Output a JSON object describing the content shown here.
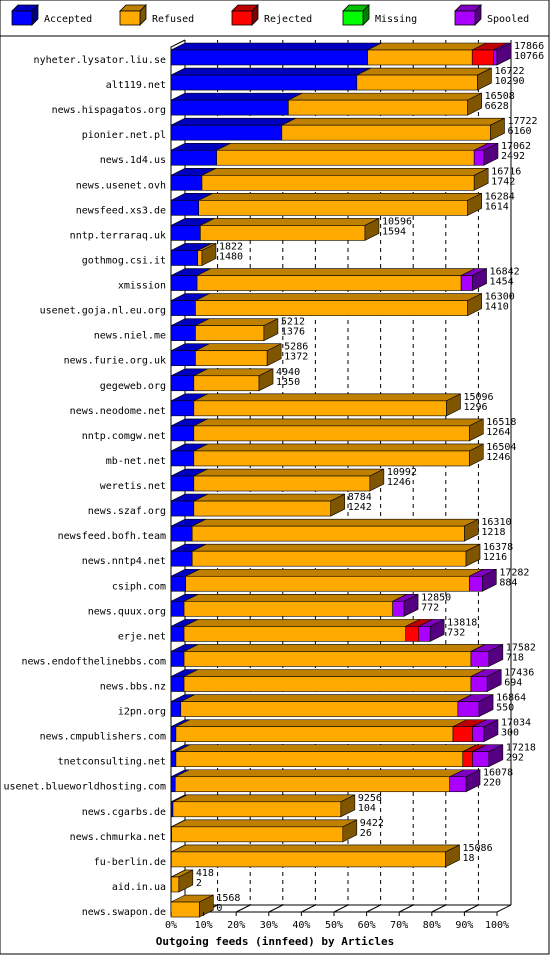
{
  "chart_data": {
    "type": "bar",
    "orientation": "horizontal",
    "stacked": true,
    "style": "3d",
    "title": "",
    "xlabel": "Outgoing feeds (innfeed) by Articles",
    "ylabel": "",
    "xlim": [
      0,
      100
    ],
    "x_ticks": [
      "0%",
      "10%",
      "20%",
      "30%",
      "40%",
      "50%",
      "60%",
      "70%",
      "80%",
      "90%",
      "100%"
    ],
    "grid": true,
    "legend_position": "top",
    "series": [
      {
        "name": "Accepted",
        "color": "#0000ff"
      },
      {
        "name": "Refused",
        "color": "#ffaa00"
      },
      {
        "name": "Rejected",
        "color": "#ff0000"
      },
      {
        "name": "Missing",
        "color": "#00ff00"
      },
      {
        "name": "Spooled",
        "color": "#aa00ff"
      }
    ],
    "rows": [
      {
        "name": "nyheter.lysator.liu.se",
        "offered": "17866",
        "accepted": "10766",
        "pct": [
          60.3,
          32.1,
          6.5,
          0,
          1.1
        ]
      },
      {
        "name": "alt119.net",
        "offered": "16722",
        "accepted": "10290",
        "pct": [
          57.0,
          37.0,
          0,
          0,
          0
        ]
      },
      {
        "name": "news.hispagatos.org",
        "offered": "16508",
        "accepted": "6628",
        "pct": [
          36.0,
          55.0,
          0,
          0,
          0
        ]
      },
      {
        "name": "pionier.net.pl",
        "offered": "17722",
        "accepted": "6160",
        "pct": [
          34.0,
          64.0,
          0,
          0,
          0
        ]
      },
      {
        "name": "news.1d4.us",
        "offered": "17062",
        "accepted": "2492",
        "pct": [
          14.0,
          79.0,
          0,
          0,
          3.0
        ]
      },
      {
        "name": "news.usenet.ovh",
        "offered": "16716",
        "accepted": "1742",
        "pct": [
          9.5,
          83.5,
          0,
          0,
          0
        ]
      },
      {
        "name": "newsfeed.xs3.de",
        "offered": "16284",
        "accepted": "1614",
        "pct": [
          8.5,
          82.5,
          0,
          0,
          0
        ]
      },
      {
        "name": "nntp.terraraq.uk",
        "offered": "10596",
        "accepted": "1594",
        "pct": [
          9.0,
          50.5,
          0,
          0,
          0
        ]
      },
      {
        "name": "gothmog.csi.it",
        "offered": "1822",
        "accepted": "1480",
        "pct": [
          8.2,
          1.3,
          0,
          0,
          0
        ]
      },
      {
        "name": "xmission",
        "offered": "16842",
        "accepted": "1454",
        "pct": [
          8.0,
          81.0,
          0,
          0,
          3.5
        ]
      },
      {
        "name": "usenet.goja.nl.eu.org",
        "offered": "16300",
        "accepted": "1410",
        "pct": [
          7.5,
          83.5,
          0,
          0,
          0
        ]
      },
      {
        "name": "news.niel.me",
        "offered": "5212",
        "accepted": "1376",
        "pct": [
          7.5,
          21.0,
          0,
          0,
          0
        ]
      },
      {
        "name": "news.furie.org.uk",
        "offered": "5286",
        "accepted": "1372",
        "pct": [
          7.5,
          22.0,
          0,
          0,
          0
        ]
      },
      {
        "name": "gegeweb.org",
        "offered": "4940",
        "accepted": "1350",
        "pct": [
          7.0,
          20.0,
          0,
          0,
          0
        ]
      },
      {
        "name": "news.neodome.net",
        "offered": "15096",
        "accepted": "1296",
        "pct": [
          7.0,
          77.5,
          0,
          0,
          0
        ]
      },
      {
        "name": "nntp.comgw.net",
        "offered": "16518",
        "accepted": "1264",
        "pct": [
          7.0,
          84.5,
          0,
          0,
          0
        ]
      },
      {
        "name": "mb-net.net",
        "offered": "16504",
        "accepted": "1246",
        "pct": [
          7.0,
          84.5,
          0,
          0,
          0
        ]
      },
      {
        "name": "weretis.net",
        "offered": "10992",
        "accepted": "1246",
        "pct": [
          7.0,
          54.0,
          0,
          0,
          0
        ]
      },
      {
        "name": "news.szaf.org",
        "offered": "8784",
        "accepted": "1242",
        "pct": [
          7.0,
          42.0,
          0,
          0,
          0
        ]
      },
      {
        "name": "newsfeed.bofh.team",
        "offered": "16310",
        "accepted": "1218",
        "pct": [
          6.5,
          83.5,
          0,
          0,
          0
        ]
      },
      {
        "name": "news.nntp4.net",
        "offered": "16378",
        "accepted": "1216",
        "pct": [
          6.5,
          84.0,
          0,
          0,
          0
        ]
      },
      {
        "name": "csiph.com",
        "offered": "17282",
        "accepted": "884",
        "pct": [
          4.5,
          87.0,
          0,
          0,
          4.0
        ]
      },
      {
        "name": "news.quux.org",
        "offered": "12850",
        "accepted": "772",
        "pct": [
          4.0,
          64.0,
          0,
          0,
          3.5
        ]
      },
      {
        "name": "erje.net",
        "offered": "13818",
        "accepted": "732",
        "pct": [
          4.0,
          68.0,
          4.0,
          0,
          3.5
        ]
      },
      {
        "name": "news.endofthelinebbs.com",
        "offered": "17582",
        "accepted": "718",
        "pct": [
          4.0,
          88.0,
          0,
          0,
          5.5
        ]
      },
      {
        "name": "news.bbs.nz",
        "offered": "17436",
        "accepted": "694",
        "pct": [
          4.0,
          88.0,
          0,
          0,
          5.0
        ]
      },
      {
        "name": "i2pn.org",
        "offered": "16864",
        "accepted": "550",
        "pct": [
          3.0,
          85.0,
          0,
          0,
          6.5
        ]
      },
      {
        "name": "news.cmpublishers.com",
        "offered": "17034",
        "accepted": "300",
        "pct": [
          1.5,
          85.0,
          6.0,
          0,
          3.5
        ]
      },
      {
        "name": "tnetconsulting.net",
        "offered": "17218",
        "accepted": "292",
        "pct": [
          1.5,
          88.0,
          3.0,
          0,
          5.0
        ]
      },
      {
        "name": "usenet.blueworldhosting.com",
        "offered": "16078",
        "accepted": "220",
        "pct": [
          1.3,
          84.2,
          0,
          0,
          5.0
        ]
      },
      {
        "name": "news.cgarbs.de",
        "offered": "9256",
        "accepted": "104",
        "pct": [
          0.6,
          51.5,
          0,
          0,
          0
        ]
      },
      {
        "name": "news.chmurka.net",
        "offered": "9422",
        "accepted": "26",
        "pct": [
          0.2,
          52.5,
          0,
          0,
          0
        ]
      },
      {
        "name": "fu-berlin.de",
        "offered": "15086",
        "accepted": "18",
        "pct": [
          0.1,
          84.1,
          0,
          0,
          0
        ]
      },
      {
        "name": "aid.in.ua",
        "offered": "418",
        "accepted": "2",
        "pct": [
          0.1,
          2.3,
          0,
          0,
          0
        ]
      },
      {
        "name": "news.swapon.de",
        "offered": "1568",
        "accepted": "0",
        "pct": [
          0.0,
          8.7,
          0,
          0,
          0
        ]
      }
    ]
  }
}
